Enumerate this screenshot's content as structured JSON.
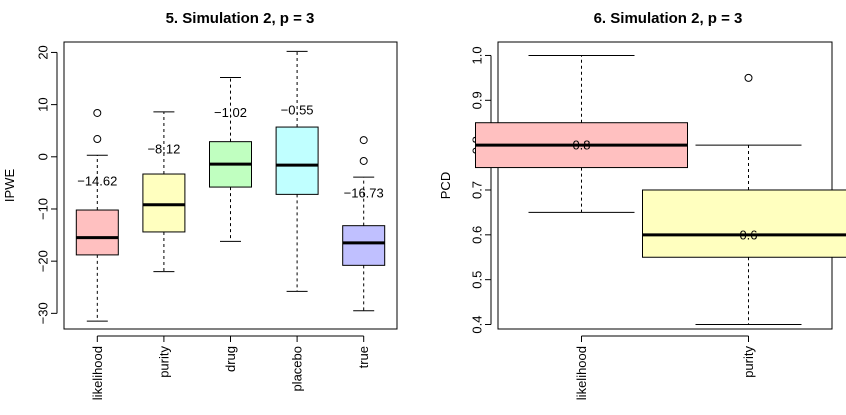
{
  "chart_data": [
    {
      "type": "box",
      "title": "5. Simulation 2, p = 3",
      "xlabel": "",
      "ylabel": "IPWE",
      "ylim": [
        -33,
        22
      ],
      "yticks": [
        -30,
        -20,
        -10,
        0,
        10,
        20
      ],
      "grid": false,
      "categories": [
        "likelihood",
        "purity",
        "drug",
        "placebo",
        "true"
      ],
      "boxes": [
        {
          "category": "likelihood",
          "whisker_low": -31.5,
          "q1": -18.8,
          "median": -15.5,
          "q3": -10.2,
          "whisker_high": 0.3,
          "outliers": [
            3.4,
            8.4
          ],
          "color": "#ffc0c0",
          "annotation": "−14.62",
          "annotation_value": -4.6
        },
        {
          "category": "purity",
          "whisker_low": -22.0,
          "q1": -14.4,
          "median": -9.2,
          "q3": -3.3,
          "whisker_high": 8.6,
          "outliers": [],
          "color": "#ffffbf",
          "annotation": "−8.12",
          "annotation_value": 1.5
        },
        {
          "category": "drug",
          "whisker_low": -16.2,
          "q1": -5.8,
          "median": -1.4,
          "q3": 2.9,
          "whisker_high": 15.2,
          "outliers": [],
          "color": "#c0ffc0",
          "annotation": "−1.02",
          "annotation_value": 8.5
        },
        {
          "category": "placebo",
          "whisker_low": -25.8,
          "q1": -7.2,
          "median": -1.6,
          "q3": 5.7,
          "whisker_high": 20.2,
          "outliers": [],
          "color": "#c0ffff",
          "annotation": "−0.55",
          "annotation_value": 9.0
        },
        {
          "category": "true",
          "whisker_low": -29.5,
          "q1": -20.8,
          "median": -16.5,
          "q3": -13.2,
          "whisker_high": -3.9,
          "outliers": [
            -0.8,
            3.2
          ],
          "color": "#c0c0ff",
          "annotation": "−16.73",
          "annotation_value": -6.9
        }
      ]
    },
    {
      "type": "box",
      "title": "6. Simulation 2, p = 3",
      "xlabel": "",
      "ylabel": "PCD",
      "ylim": [
        0.39,
        1.03
      ],
      "yticks": [
        0.4,
        0.5,
        0.6,
        0.7,
        0.8,
        0.9,
        1.0
      ],
      "ytick_labels": [
        "0.4",
        "0.5",
        "0.6",
        "0.7",
        "0.8",
        "0.9",
        "1.0"
      ],
      "grid": false,
      "categories": [
        "likelihood",
        "purity"
      ],
      "boxes": [
        {
          "category": "likelihood",
          "whisker_low": 0.65,
          "q1": 0.75,
          "median": 0.8,
          "q3": 0.85,
          "whisker_high": 1.0,
          "outliers": [],
          "color": "#ffc0c0",
          "annotation": "0.8",
          "annotation_value": 0.8
        },
        {
          "category": "purity",
          "whisker_low": 0.4,
          "q1": 0.55,
          "median": 0.6,
          "q3": 0.7,
          "whisker_high": 0.8,
          "outliers": [
            0.95
          ],
          "color": "#ffffbf",
          "annotation": "0.6",
          "annotation_value": 0.6
        }
      ]
    }
  ]
}
